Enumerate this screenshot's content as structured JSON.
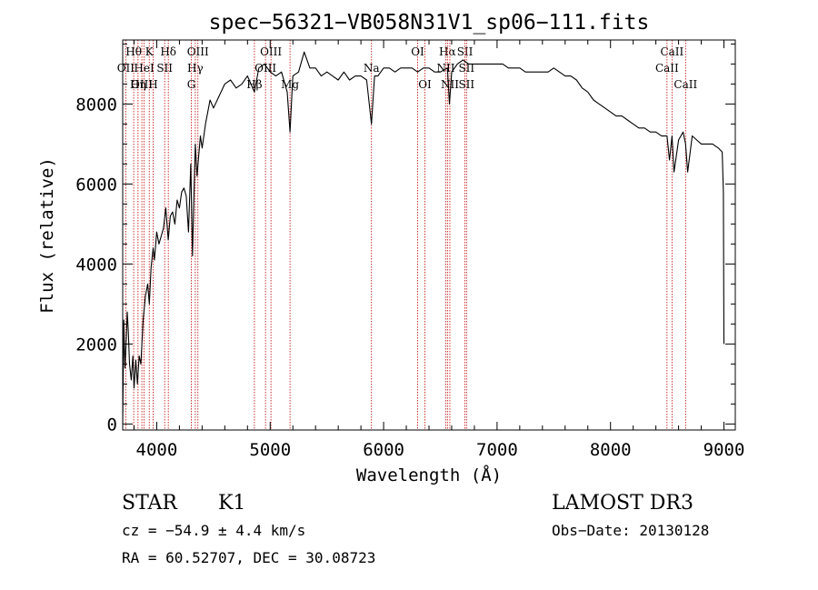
{
  "chart_data": {
    "type": "line",
    "title": "spec−56321−VB058N31V1_sp06−111.fits",
    "xlabel": "Wavelength (Å)",
    "ylabel": "Flux (relative)",
    "xlim": [
      3700,
      9100
    ],
    "ylim": [
      -150,
      9600
    ],
    "xticks": [
      4000,
      5000,
      6000,
      7000,
      8000,
      9000
    ],
    "yticks": [
      0,
      2000,
      4000,
      6000,
      8000
    ],
    "grid": false,
    "series": [
      {
        "name": "flux",
        "x": [
          3700,
          3710,
          3720,
          3730,
          3740,
          3750,
          3760,
          3775,
          3790,
          3800,
          3815,
          3830,
          3845,
          3860,
          3880,
          3900,
          3920,
          3935,
          3950,
          3968,
          3980,
          4000,
          4020,
          4040,
          4060,
          4080,
          4101,
          4120,
          4140,
          4160,
          4180,
          4200,
          4220,
          4240,
          4260,
          4280,
          4300,
          4315,
          4330,
          4340,
          4355,
          4370,
          4385,
          4400,
          4430,
          4470,
          4500,
          4550,
          4600,
          4650,
          4700,
          4750,
          4800,
          4861,
          4900,
          4950,
          5000,
          5050,
          5100,
          5150,
          5175,
          5200,
          5250,
          5300,
          5350,
          5400,
          5450,
          5500,
          5550,
          5600,
          5650,
          5700,
          5750,
          5800,
          5850,
          5893,
          5920,
          5950,
          6000,
          6050,
          6100,
          6150,
          6200,
          6250,
          6300,
          6350,
          6400,
          6450,
          6500,
          6563,
          6580,
          6600,
          6650,
          6700,
          6750,
          6800,
          6850,
          6900,
          6950,
          7000,
          7050,
          7100,
          7150,
          7200,
          7250,
          7300,
          7350,
          7400,
          7450,
          7500,
          7550,
          7600,
          7650,
          7700,
          7750,
          7800,
          7850,
          7900,
          7950,
          8000,
          8050,
          8100,
          8150,
          8200,
          8250,
          8300,
          8350,
          8400,
          8450,
          8498,
          8520,
          8542,
          8560,
          8600,
          8640,
          8662,
          8680,
          8720,
          8760,
          8800,
          8850,
          8900,
          8950,
          8985,
          8995,
          9000
        ],
        "values": [
          0,
          2600,
          1400,
          2000,
          2800,
          2300,
          1500,
          1100,
          1700,
          900,
          1600,
          1000,
          1700,
          1500,
          2600,
          3200,
          3500,
          3000,
          3900,
          4400,
          4100,
          4800,
          4500,
          4700,
          4900,
          5400,
          4600,
          5200,
          5300,
          5000,
          5600,
          5400,
          5800,
          5900,
          5700,
          4800,
          6500,
          4200,
          5900,
          7000,
          6200,
          6700,
          7200,
          6900,
          7500,
          8100,
          7900,
          8200,
          8500,
          8600,
          8400,
          8500,
          8700,
          8300,
          8900,
          9000,
          8800,
          8700,
          8800,
          8300,
          7300,
          8700,
          8800,
          9300,
          8900,
          8900,
          8700,
          8800,
          8700,
          8600,
          8800,
          8600,
          8700,
          8700,
          8600,
          7500,
          8700,
          8700,
          8900,
          8900,
          8800,
          8900,
          8900,
          8900,
          8800,
          8900,
          8900,
          8800,
          8800,
          8900,
          8000,
          8800,
          9000,
          9100,
          9000,
          9000,
          9000,
          9000,
          9000,
          9000,
          9000,
          8900,
          8900,
          8900,
          8800,
          8800,
          8800,
          8800,
          8800,
          8900,
          8800,
          8700,
          8700,
          8600,
          8400,
          8300,
          8100,
          8000,
          7900,
          7800,
          7700,
          7700,
          7600,
          7500,
          7400,
          7400,
          7300,
          7300,
          7200,
          7200,
          6600,
          7200,
          6300,
          7100,
          7300,
          7000,
          6300,
          7200,
          7100,
          7000,
          7000,
          7000,
          6900,
          6800,
          5800,
          2000
        ]
      }
    ],
    "line_markers": [
      {
        "label": "Hθ",
        "x": 3797,
        "row": 0
      },
      {
        "label": "OII",
        "x": 3727,
        "row": 1
      },
      {
        "label": "OIII",
        "x": 3869,
        "row": 2
      },
      {
        "label": "K",
        "x": 3934,
        "row": 0
      },
      {
        "label": "HeI",
        "x": 3889,
        "row": 1
      },
      {
        "label": "Hη",
        "x": 3835,
        "row": 2
      },
      {
        "label": "SII",
        "x": 4070,
        "row": 1
      },
      {
        "label": "H",
        "x": 3968,
        "row": 2
      },
      {
        "label": "Hδ",
        "x": 4102,
        "row": 0
      },
      {
        "label": "OIII",
        "x": 4363,
        "row": 0
      },
      {
        "label": "Hγ",
        "x": 4340,
        "row": 1
      },
      {
        "label": "G",
        "x": 4305,
        "row": 2
      },
      {
        "label": "OIII",
        "x": 5007,
        "row": 0
      },
      {
        "label": "OIII",
        "x": 4959,
        "row": 1
      },
      {
        "label": "Hβ",
        "x": 4861,
        "row": 2
      },
      {
        "label": "Mg",
        "x": 5175,
        "row": 2
      },
      {
        "label": "Na",
        "x": 5893,
        "row": 1
      },
      {
        "label": "OI",
        "x": 6300,
        "row": 0
      },
      {
        "label": "OI",
        "x": 6364,
        "row": 2
      },
      {
        "label": "Hα",
        "x": 6563,
        "row": 0
      },
      {
        "label": "SII",
        "x": 6717,
        "row": 0
      },
      {
        "label": "NII",
        "x": 6548,
        "row": 1
      },
      {
        "label": "SII",
        "x": 6731,
        "row": 1
      },
      {
        "label": "NII",
        "x": 6584,
        "row": 2
      },
      {
        "label": "SII",
        "x": 6731,
        "row": 2
      },
      {
        "label": "CaII",
        "x": 8542,
        "row": 0
      },
      {
        "label": "CaII",
        "x": 8498,
        "row": 1
      },
      {
        "label": "CaII",
        "x": 8662,
        "row": 2
      }
    ]
  },
  "info": {
    "object_class": "STAR",
    "subclass": "K1",
    "survey": "LAMOST DR3",
    "cz": "cz = −54.9 ± 4.4 km/s",
    "obs_date": "Obs−Date: 20130128",
    "coords": "RA =  60.52707, DEC =  30.08723"
  },
  "colors": {
    "line": "#000000",
    "marker": "#c00000",
    "text": "#000000"
  }
}
